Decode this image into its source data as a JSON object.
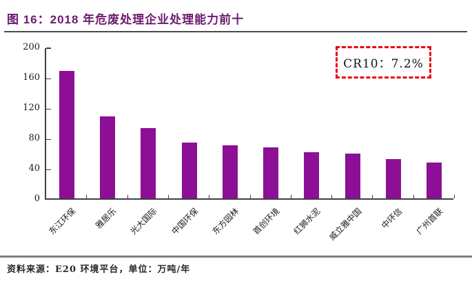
{
  "title": {
    "text": "图 16：2018 年危废处理企业处理能力前十"
  },
  "annotation": {
    "cr10_label": "CR10：7.2%"
  },
  "footer": {
    "text": "资料来源：E20 环境平台，单位：万吨/年"
  },
  "colors": {
    "bar": "#8C0F96",
    "title_text": "#6B1A6E",
    "cr10_border": "#E8000D",
    "axis": "#3F3F3F",
    "top_rule": "#4A4A4A",
    "bottom_rule": "#7F7F7F"
  },
  "chart_data": {
    "type": "bar",
    "title": "2018 年危废处理企业处理能力前十",
    "categories": [
      "东江环保",
      "雅居乐",
      "光大国际",
      "中国环保",
      "东方园林",
      "首创环境",
      "红狮水泥",
      "威立雅中国",
      "中环信",
      "广州首联"
    ],
    "values": [
      168,
      108,
      93,
      74,
      70,
      67,
      61,
      59,
      52,
      47
    ],
    "xlabel": "",
    "ylabel": "",
    "unit": "万吨/年",
    "ylim": [
      0,
      200
    ],
    "yticks": [
      0,
      40,
      80,
      120,
      160,
      200
    ],
    "grid": false,
    "legend": "none",
    "annotation": "CR10：7.2%",
    "bar_color": "#8C0F96",
    "xlabel_rotation_deg": -45
  }
}
